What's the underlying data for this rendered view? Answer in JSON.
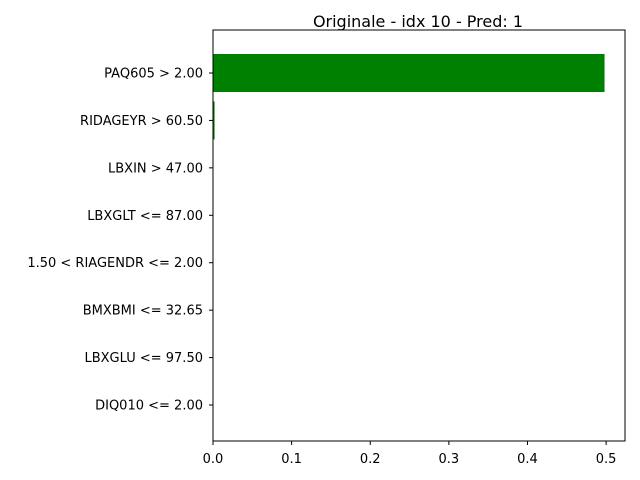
{
  "chart_data": {
    "type": "bar",
    "orientation": "horizontal",
    "title": "Originale - idx 10 - Pred: 1",
    "xlabel": "",
    "ylabel": "",
    "categories": [
      "PAQ605 > 2.00",
      "RIDAGEYR > 60.50",
      "LBXIN > 47.00",
      "LBXGLT <= 87.00",
      "1.50 < RIAGENDR <= 2.00",
      "BMXBMI <= 32.65",
      "LBXGLU <= 97.50",
      "DIQ010 <= 2.00"
    ],
    "values": [
      0.498,
      0.002,
      0.0,
      0.0,
      0.0,
      0.0,
      0.0,
      0.0
    ],
    "xlim": [
      0,
      0.524
    ],
    "xticks": [
      "0.0",
      "0.1",
      "0.2",
      "0.3",
      "0.4",
      "0.5"
    ],
    "xtick_values": [
      0,
      0.1,
      0.2,
      0.3,
      0.4,
      0.5
    ],
    "bar_color": "#008000",
    "grid": false,
    "legend": "none"
  }
}
